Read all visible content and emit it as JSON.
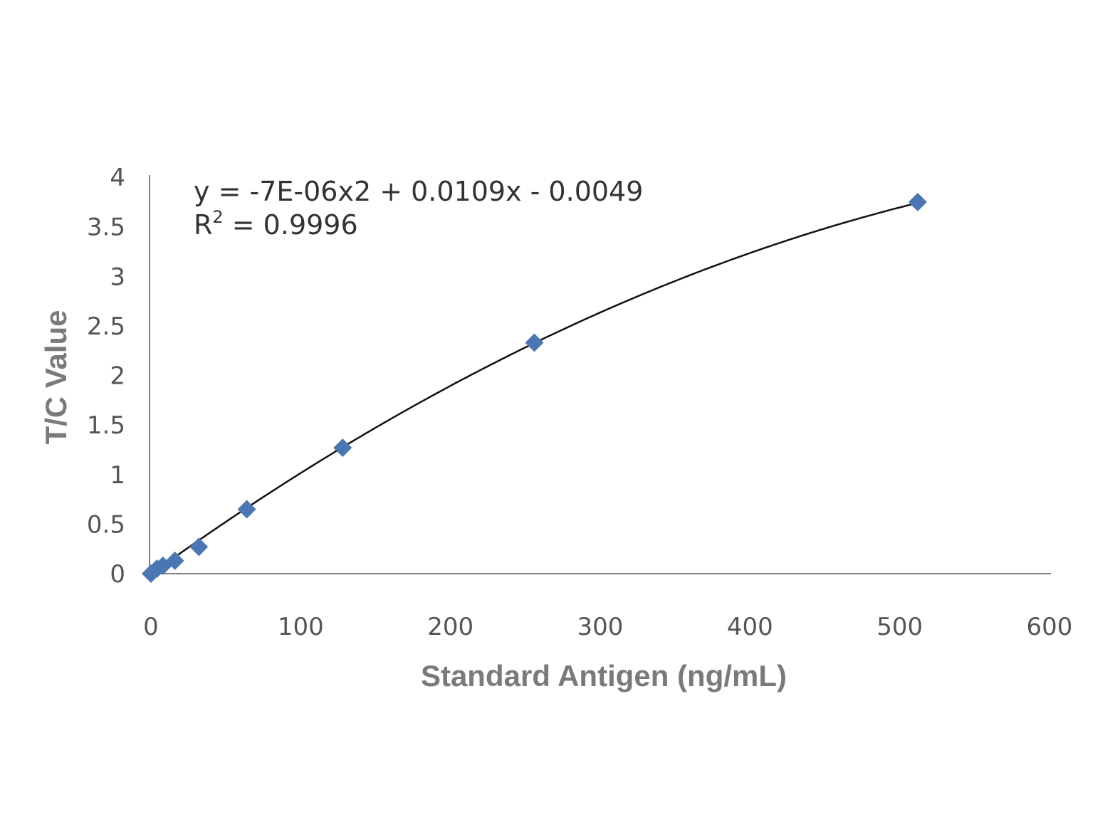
{
  "chart_data": {
    "type": "scatter",
    "xlabel": "Standard Antigen (ng/mL)",
    "ylabel": "T/C Value",
    "xlim": [
      0,
      600
    ],
    "ylim": [
      0,
      4
    ],
    "xticks": [
      "0",
      "100",
      "200",
      "300",
      "400",
      "500",
      "600"
    ],
    "yticks": [
      "0",
      "0.5",
      "1",
      "1.5",
      "2",
      "2.5",
      "3",
      "3.5",
      "4"
    ],
    "series": [
      {
        "x": [
          0,
          4,
          8,
          16,
          32,
          64,
          128,
          256,
          512
        ],
        "y": [
          0.0,
          0.05,
          0.08,
          0.13,
          0.27,
          0.65,
          1.27,
          2.33,
          3.75
        ],
        "color": "#4a77b4",
        "marker": "diamond"
      }
    ],
    "trendline": {
      "type": "polynomial",
      "coefficients": [
        -7e-06,
        0.0109,
        -0.0049
      ],
      "equation": "y = -7E-06x2 + 0.0109x - 0.0049",
      "r2_prefix": "R",
      "r2_superscript": "2",
      "r2_value": " = 0.9996"
    },
    "grid": false,
    "legend": "none"
  }
}
